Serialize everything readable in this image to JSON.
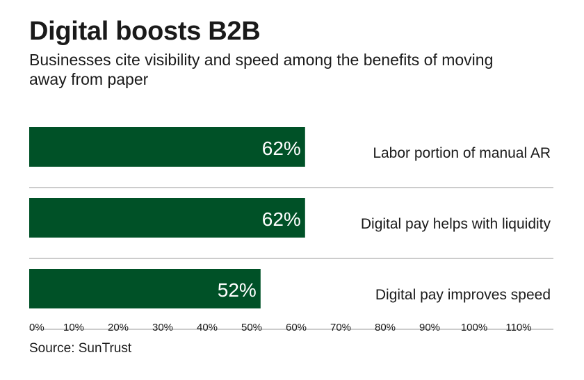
{
  "header": {
    "title": "Digital boosts B2B",
    "subtitle": "Businesses cite visibility and speed among the benefits of moving away from paper"
  },
  "footer": {
    "source": "Source: SunTrust"
  },
  "colors": {
    "bar": "#005127",
    "bar_label": "#ffffff",
    "rule": "#9a9a9a",
    "text": "#1a1a1a"
  },
  "chart_data": {
    "type": "bar",
    "orientation": "horizontal",
    "categories": [
      "Labor portion of manual AR",
      "Digital pay helps with liquidity",
      "Digital pay improves speed"
    ],
    "values": [
      62,
      62,
      52
    ],
    "value_labels": [
      "62%",
      "62%",
      "52%"
    ],
    "xlim": [
      0,
      110
    ],
    "x_ticks": [
      0,
      10,
      20,
      30,
      40,
      50,
      60,
      70,
      80,
      90,
      100,
      110
    ],
    "x_tick_labels": [
      "0%",
      "10%",
      "20%",
      "30%",
      "40%",
      "50%",
      "60%",
      "70%",
      "80%",
      "90%",
      "100%",
      "110%"
    ],
    "grid": false,
    "legend": "none"
  }
}
